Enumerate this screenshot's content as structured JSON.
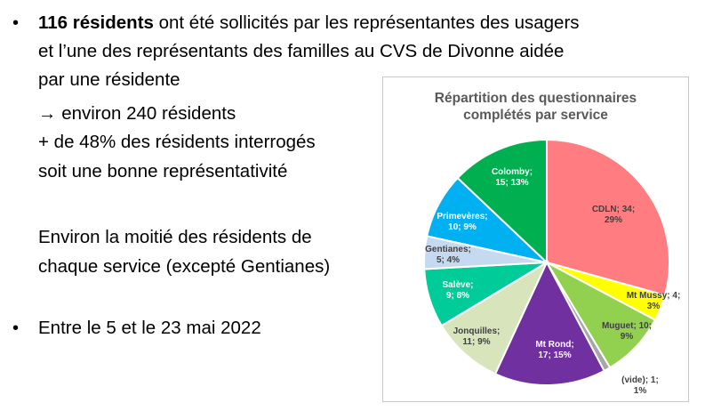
{
  "bullets": {
    "b1_bold": "116 résidents",
    "b1_rest": " ont été sollicités par les représentantes des usagers",
    "b1_line2": "et l’une des représentants des familles au CVS de Divonne aidée",
    "b1_line3": "par une résidente",
    "arrow_line": "→ environ 240 résidents",
    "pct_line": "+ de 48% des résidents interrogés",
    "repr_line": "soit une bonne représentativité",
    "half_line1": "Environ la moitié des résidents de",
    "half_line2": "chaque service (excepté Gentianes)",
    "b2": "Entre le 5 et le 23 mai 2022",
    "bullet_symbol": "•"
  },
  "chart_data": {
    "type": "pie",
    "title_line1": "Répartition des questionnaires",
    "title_line2": "complétés par service",
    "slices": [
      {
        "name": "CDLN",
        "value": 34,
        "pct": "29%",
        "color": "#ff7c80",
        "label_line1": "CDLN;  34;",
        "label_line2": "29%"
      },
      {
        "name": "Mt Mussy",
        "value": 4,
        "pct": "3%",
        "color": "#ffff00",
        "label_line1": "Mt Mussy; 4;",
        "label_line2": "3%"
      },
      {
        "name": "Muguet",
        "value": 10,
        "pct": "9%",
        "color": "#92d050",
        "label_line1": "Muguet; 10;",
        "label_line2": "9%"
      },
      {
        "name": "(vide)",
        "value": 1,
        "pct": "1%",
        "color": "#a6a6a6",
        "label_line1": "(vide); 1;",
        "label_line2": "1%"
      },
      {
        "name": "Mt Rond",
        "value": 17,
        "pct": "15%",
        "color": "#7030a0",
        "label_line1": "Mt Rond;",
        "label_line2": "17; 15%"
      },
      {
        "name": "Jonquilles",
        "value": 11,
        "pct": "9%",
        "color": "#d8e4bc",
        "label_line1": "Jonquilles;",
        "label_line2": "11; 9%"
      },
      {
        "name": "Salève",
        "value": 9,
        "pct": "8%",
        "color": "#00cc99",
        "label_line1": "Salève;",
        "label_line2": "9; 8%"
      },
      {
        "name": "Gentianes",
        "value": 5,
        "pct": "4%",
        "color": "#c5d9f1",
        "label_line1": "Gentianes;",
        "label_line2": "5; 4%"
      },
      {
        "name": "Primevères",
        "value": 10,
        "pct": "9%",
        "color": "#00b0f0",
        "label_line1": "Primevères;",
        "label_line2": "10; 9%"
      },
      {
        "name": "Colomby",
        "value": 15,
        "pct": "13%",
        "color": "#00b050",
        "label_line1": "Colomby;",
        "label_line2": "15; 13%"
      }
    ]
  }
}
